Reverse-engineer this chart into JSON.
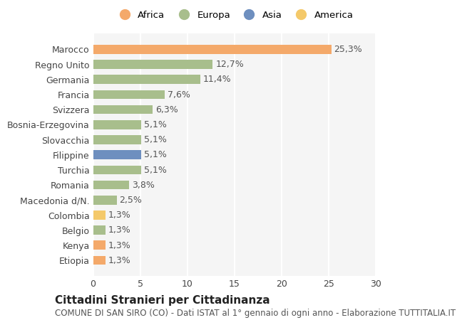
{
  "categories": [
    "Marocco",
    "Regno Unito",
    "Germania",
    "Francia",
    "Svizzera",
    "Bosnia-Erzegovina",
    "Slovacchia",
    "Filippine",
    "Turchia",
    "Romania",
    "Macedonia d/N.",
    "Colombia",
    "Belgio",
    "Kenya",
    "Etiopia"
  ],
  "values": [
    25.3,
    12.7,
    11.4,
    7.6,
    6.3,
    5.1,
    5.1,
    5.1,
    5.1,
    3.8,
    2.5,
    1.3,
    1.3,
    1.3,
    1.3
  ],
  "labels": [
    "25,3%",
    "12,7%",
    "11,4%",
    "7,6%",
    "6,3%",
    "5,1%",
    "5,1%",
    "5,1%",
    "5,1%",
    "3,8%",
    "2,5%",
    "1,3%",
    "1,3%",
    "1,3%",
    "1,3%"
  ],
  "colors": [
    "#F4A96A",
    "#A8BE8C",
    "#A8BE8C",
    "#A8BE8C",
    "#A8BE8C",
    "#A8BE8C",
    "#A8BE8C",
    "#6E8FBF",
    "#A8BE8C",
    "#A8BE8C",
    "#A8BE8C",
    "#F4C96A",
    "#A8BE8C",
    "#F4A96A",
    "#F4A96A"
  ],
  "legend": [
    {
      "label": "Africa",
      "color": "#F4A96A"
    },
    {
      "label": "Europa",
      "color": "#A8BE8C"
    },
    {
      "label": "Asia",
      "color": "#6E8FBF"
    },
    {
      "label": "America",
      "color": "#F4C96A"
    }
  ],
  "title": "Cittadini Stranieri per Cittadinanza",
  "subtitle": "COMUNE DI SAN SIRO (CO) - Dati ISTAT al 1° gennaio di ogni anno - Elaborazione TUTTITALIA.IT",
  "xlim": [
    0,
    30
  ],
  "xticks": [
    0,
    5,
    10,
    15,
    20,
    25,
    30
  ],
  "bg_color": "#FFFFFF",
  "plot_bg_color": "#F5F5F5",
  "bar_height": 0.6,
  "label_fontsize": 9,
  "tick_fontsize": 9,
  "title_fontsize": 11,
  "subtitle_fontsize": 8.5
}
